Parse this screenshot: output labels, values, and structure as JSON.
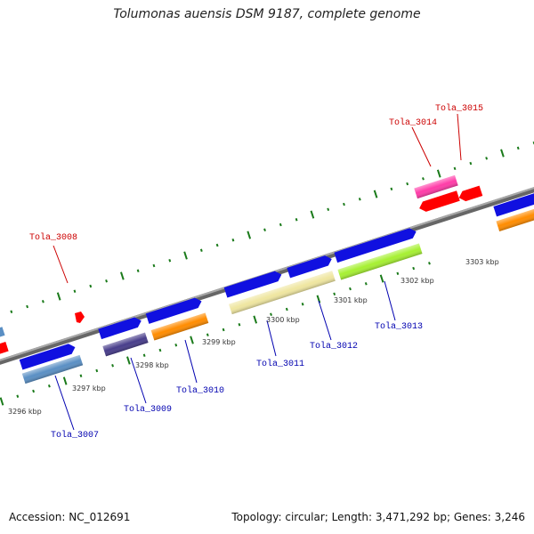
{
  "title": "Tolumonas auensis DSM 9187, complete genome",
  "footer": {
    "accession": "Accession: NC_012691",
    "stats": "Topology: circular; Length: 3,471,292 bp; Genes: 3,246"
  },
  "colors": {
    "backbone": "#8a8a8a",
    "tick": "#1a7a1a",
    "forward_gene": "#1010e0",
    "label_forward": "#0000b0",
    "label_reverse": "#cc0000",
    "kbp_text": "#333333"
  },
  "kbp_ticks": [
    {
      "label": "3296 kbp",
      "pos_kbp": 3296
    },
    {
      "label": "3297 kbp",
      "pos_kbp": 3297
    },
    {
      "label": "3298 kbp",
      "pos_kbp": 3298
    },
    {
      "label": "3299 kbp",
      "pos_kbp": 3299
    },
    {
      "label": "3300 kbp",
      "pos_kbp": 3300
    },
    {
      "label": "3301 kbp",
      "pos_kbp": 3301
    },
    {
      "label": "3302 kbp",
      "pos_kbp": 3302
    },
    {
      "label": "3303 kbp",
      "pos_kbp": 3303
    }
  ],
  "gene_labels": [
    {
      "label": "Tola_3007",
      "strand": "forward"
    },
    {
      "label": "Tola_3008",
      "strand": "reverse"
    },
    {
      "label": "Tola_3009",
      "strand": "forward"
    },
    {
      "label": "Tola_3010",
      "strand": "forward"
    },
    {
      "label": "Tola_3011",
      "strand": "forward"
    },
    {
      "label": "Tola_3012",
      "strand": "forward"
    },
    {
      "label": "Tola_3013",
      "strand": "forward"
    },
    {
      "label": "Tola_3014",
      "strand": "reverse"
    },
    {
      "label": "Tola_3015",
      "strand": "reverse"
    }
  ],
  "gene_colors": {
    "Tola_3007": "#5a8fc4",
    "Tola_3008": "#ff0000",
    "Tola_3009": "#483d8b",
    "Tola_3010": "#ff8c00",
    "Tola_3011": "#efe6a0",
    "Tola_3012": "#efe6a0",
    "Tola_3013": "#a6f032",
    "Tola_3014": "#ff3ca8",
    "Tola_3015": "#ff0000",
    "next_gene": "#ff8c00"
  }
}
